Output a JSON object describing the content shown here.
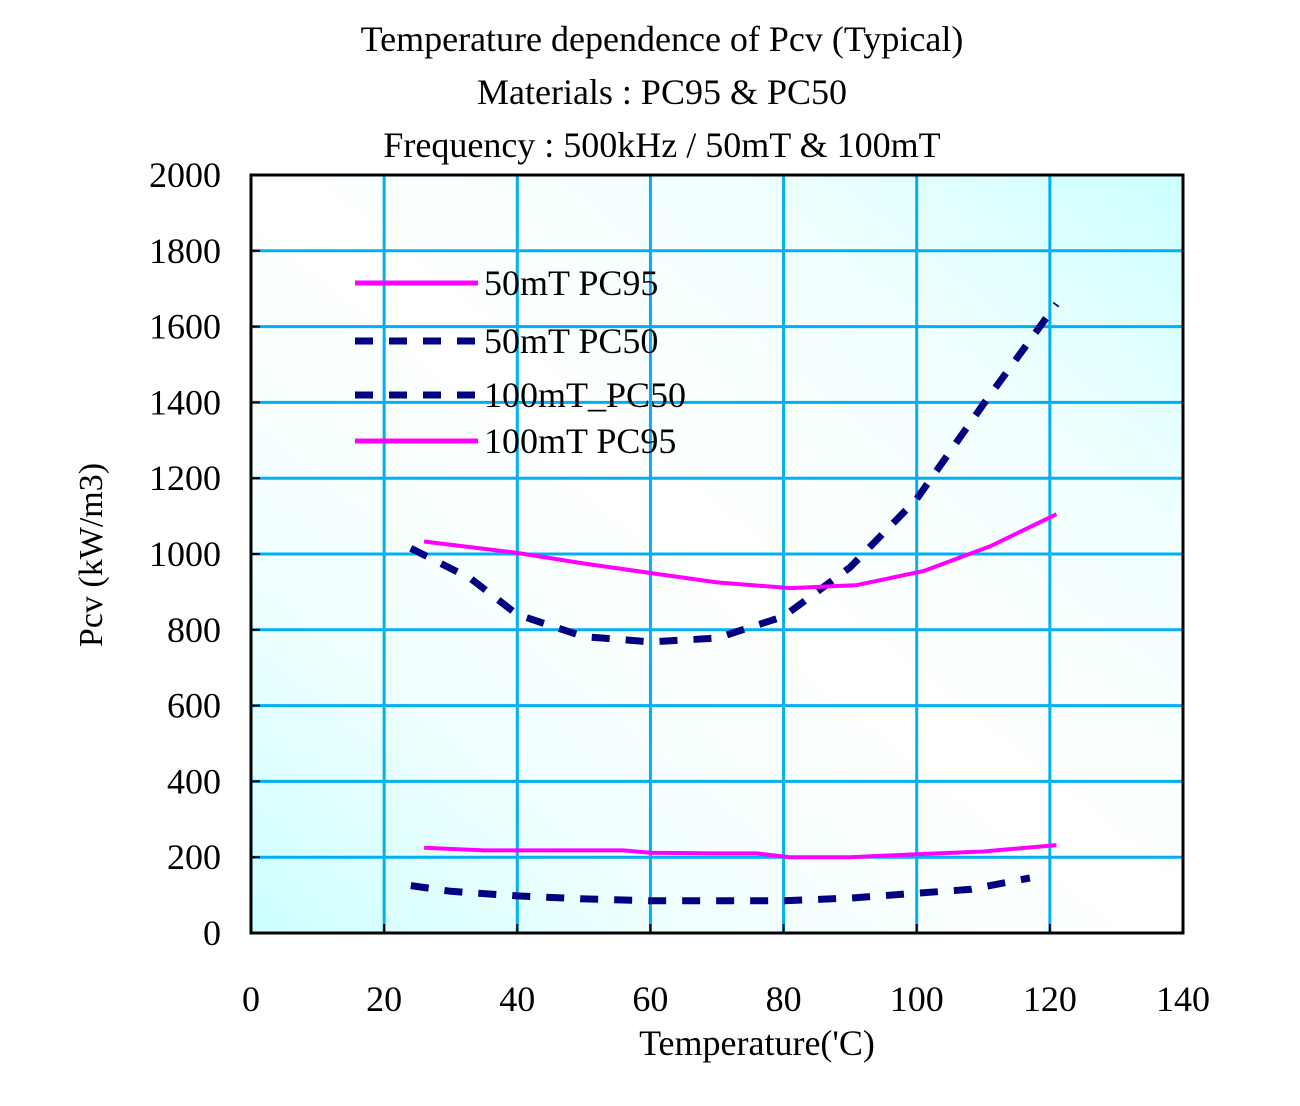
{
  "chart_data": {
    "type": "line",
    "title": "Temperature dependence of Pcv (Typical)",
    "subtitle_lines": [
      "Materials : PC95 & PC50",
      "Frequency : 500kHz / 50mT & 100mT"
    ],
    "xlabel": "Temperature('C)",
    "ylabel": "Pcv (kW/m3)",
    "xlim": [
      0,
      140
    ],
    "ylim": [
      0,
      2000
    ],
    "xticks": [
      0,
      20,
      40,
      60,
      80,
      100,
      120,
      140
    ],
    "yticks": [
      0,
      200,
      400,
      600,
      800,
      1000,
      1200,
      1400,
      1600,
      1800,
      2000
    ],
    "grid": true,
    "legend_position": "top-left",
    "series": [
      {
        "name": "50mT PC95",
        "color": "#ff00ff",
        "style": "solid",
        "points": [
          [
            26,
            225
          ],
          [
            35,
            218
          ],
          [
            45,
            218
          ],
          [
            56,
            218
          ],
          [
            60,
            212
          ],
          [
            70,
            210
          ],
          [
            76,
            210
          ],
          [
            81,
            200
          ],
          [
            90,
            200
          ],
          [
            100,
            208
          ],
          [
            110,
            215
          ],
          [
            121,
            232
          ]
        ]
      },
      {
        "name": "50mT PC50",
        "color": "#000080",
        "style": "dashed",
        "points": [
          [
            24,
            125
          ],
          [
            30,
            110
          ],
          [
            40,
            98
          ],
          [
            50,
            90
          ],
          [
            60,
            85
          ],
          [
            70,
            85
          ],
          [
            80,
            85
          ],
          [
            90,
            92
          ],
          [
            100,
            105
          ],
          [
            108,
            115
          ],
          [
            117,
            145
          ]
        ]
      },
      {
        "name": "100mT_PC50",
        "color": "#000080",
        "style": "dashed",
        "points": [
          [
            24,
            1015
          ],
          [
            33,
            935
          ],
          [
            40,
            840
          ],
          [
            50,
            782
          ],
          [
            60,
            768
          ],
          [
            70,
            778
          ],
          [
            80,
            835
          ],
          [
            90,
            965
          ],
          [
            100,
            1145
          ],
          [
            110,
            1395
          ],
          [
            121,
            1660
          ]
        ]
      },
      {
        "name": "100mT PC95",
        "color": "#ff00ff",
        "style": "solid",
        "points": [
          [
            26,
            1033
          ],
          [
            40,
            1003
          ],
          [
            50,
            975
          ],
          [
            60,
            950
          ],
          [
            70,
            925
          ],
          [
            81,
            910
          ],
          [
            91,
            918
          ],
          [
            101,
            955
          ],
          [
            111,
            1020
          ],
          [
            121,
            1105
          ]
        ]
      }
    ]
  }
}
